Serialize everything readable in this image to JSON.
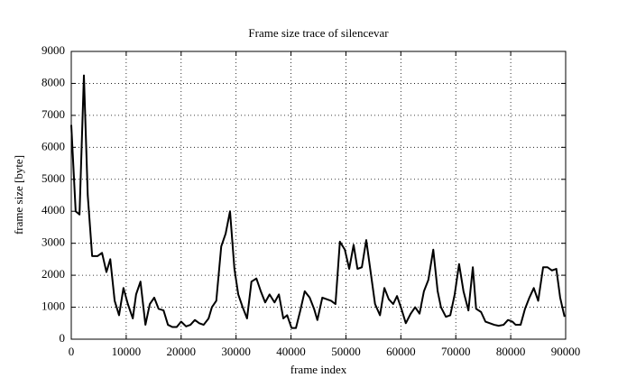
{
  "chart_data": {
    "type": "line",
    "title": "Frame size trace of silencevar",
    "xlabel": "frame index",
    "ylabel": "frame size [byte]",
    "xlim": [
      0,
      90000
    ],
    "ylim": [
      0,
      9000
    ],
    "xticks": [
      0,
      10000,
      20000,
      30000,
      40000,
      50000,
      60000,
      70000,
      80000,
      90000
    ],
    "yticks": [
      0,
      1000,
      2000,
      3000,
      4000,
      5000,
      6000,
      7000,
      8000,
      9000
    ],
    "grid": true,
    "series": [
      {
        "color": "#000000",
        "x": [
          0,
          800,
          1500,
          2300,
          3000,
          3800,
          4800,
          5600,
          6400,
          7100,
          7900,
          8700,
          9500,
          10300,
          11200,
          11800,
          12600,
          13500,
          14300,
          15100,
          15900,
          16800,
          17600,
          18400,
          19200,
          20000,
          20900,
          21700,
          22500,
          23300,
          24100,
          25000,
          25600,
          26400,
          27300,
          28100,
          28900,
          29700,
          30400,
          31200,
          32000,
          32800,
          33700,
          34500,
          35300,
          36100,
          37000,
          37800,
          38600,
          39300,
          40100,
          40900,
          41700,
          42500,
          43400,
          44200,
          44800,
          45700,
          46500,
          47300,
          48100,
          48900,
          49800,
          50600,
          51400,
          52100,
          52900,
          53700,
          54500,
          55300,
          56200,
          57000,
          57800,
          58600,
          59300,
          60100,
          60900,
          61800,
          62600,
          63400,
          64200,
          65000,
          65900,
          66700,
          67300,
          68200,
          69000,
          69800,
          70600,
          71400,
          72300,
          73100,
          73700,
          74600,
          75400,
          76200,
          77000,
          77800,
          78700,
          79500,
          80300,
          80900,
          81800,
          82600,
          83400,
          84200,
          85000,
          85900,
          86700,
          87500,
          88300,
          89000,
          89800
        ],
        "values": [
          6700,
          4000,
          3900,
          8250,
          4500,
          2600,
          2600,
          2700,
          2100,
          2500,
          1200,
          750,
          1600,
          1100,
          650,
          1400,
          1800,
          450,
          1100,
          1300,
          950,
          900,
          450,
          380,
          380,
          550,
          400,
          450,
          600,
          500,
          450,
          650,
          1000,
          1200,
          2900,
          3300,
          4000,
          2200,
          1400,
          1000,
          650,
          1800,
          1900,
          1500,
          1150,
          1400,
          1150,
          1400,
          650,
          750,
          350,
          350,
          900,
          1500,
          1300,
          950,
          600,
          1300,
          1250,
          1200,
          1100,
          3050,
          2800,
          2200,
          2950,
          2200,
          2250,
          3100,
          2100,
          1100,
          750,
          1600,
          1250,
          1100,
          1350,
          950,
          500,
          800,
          1000,
          800,
          1500,
          1850,
          2800,
          1500,
          1000,
          700,
          750,
          1400,
          2350,
          1500,
          900,
          2250,
          950,
          850,
          550,
          500,
          450,
          420,
          450,
          600,
          550,
          450,
          450,
          950,
          1300,
          1600,
          1200,
          2250,
          2250,
          2150,
          2200,
          1300,
          700
        ]
      }
    ]
  }
}
